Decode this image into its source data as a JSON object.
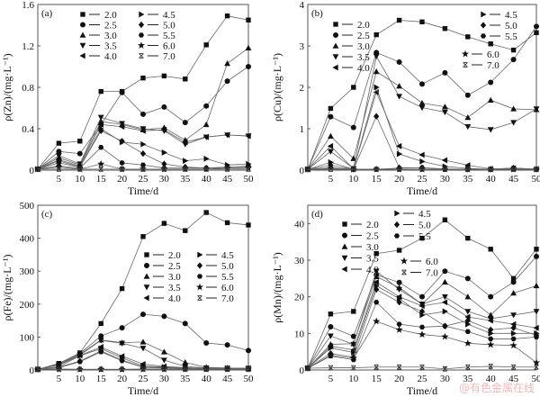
{
  "chart_data": [
    {
      "type": "line",
      "panel_label": "(a)",
      "xlabel": "Time/d",
      "ylabel": "ρ(Zn)/(mg·L⁻¹)",
      "xlim": [
        0,
        50
      ],
      "ylim": [
        0,
        1.6
      ],
      "xticks": [
        0,
        5,
        10,
        15,
        20,
        25,
        30,
        35,
        40,
        45,
        50
      ],
      "yticks": [
        0,
        0.4,
        0.8,
        1.2,
        1.6
      ],
      "ytick_labels": [
        "0",
        "0.4",
        "0.8",
        "1.2",
        "1.6"
      ],
      "legend_placement": "top",
      "x": [
        0,
        5,
        10,
        15,
        20,
        25,
        30,
        35,
        40,
        45,
        50
      ],
      "series": [
        {
          "name": "2.0",
          "marker": "square",
          "values": [
            0.01,
            0.26,
            0.28,
            0.76,
            0.76,
            0.89,
            0.91,
            0.88,
            1.21,
            1.49,
            1.45
          ]
        },
        {
          "name": "2.5",
          "marker": "circle",
          "values": [
            0.01,
            0.18,
            0.16,
            0.44,
            0.75,
            0.54,
            0.61,
            0.46,
            0.62,
            0.86,
            1.0
          ]
        },
        {
          "name": "3.0",
          "marker": "triangle-up",
          "values": [
            0.01,
            0.12,
            0.05,
            0.47,
            0.44,
            0.39,
            0.41,
            0.29,
            0.44,
            1.03,
            1.18
          ]
        },
        {
          "name": "3.5",
          "marker": "triangle-down",
          "values": [
            0.01,
            0.14,
            0.06,
            0.51,
            0.45,
            0.4,
            0.38,
            0.25,
            0.32,
            0.34,
            0.33
          ]
        },
        {
          "name": "4.0",
          "marker": "triangle-left",
          "values": [
            0.01,
            0.1,
            0.04,
            0.44,
            0.42,
            0.38,
            0.39,
            0.27,
            0.32,
            0.34,
            0.33
          ]
        },
        {
          "name": "4.5",
          "marker": "triangle-right",
          "values": [
            0.01,
            0.09,
            0.03,
            0.4,
            0.27,
            0.25,
            0.17,
            0.09,
            0.11,
            0.05,
            0.06
          ]
        },
        {
          "name": "5.0",
          "marker": "diamond",
          "values": [
            0.01,
            0.07,
            0.03,
            0.38,
            0.28,
            0.16,
            0.06,
            0.03,
            0.02,
            0.03,
            0.04
          ]
        },
        {
          "name": "5.5",
          "marker": "hexagon",
          "values": [
            0.01,
            0.04,
            0.02,
            0.22,
            0.07,
            0.05,
            0.02,
            0.02,
            0.02,
            0.02,
            0.03
          ]
        },
        {
          "name": "6.0",
          "marker": "star",
          "values": [
            0.01,
            0.03,
            0.01,
            0.06,
            0.01,
            0.01,
            0.01,
            0.01,
            0.01,
            0.02,
            0.02
          ]
        },
        {
          "name": "7.0",
          "marker": "x",
          "values": [
            0.01,
            0.01,
            0.01,
            0.01,
            0.01,
            0.01,
            0.01,
            0.01,
            0.01,
            0.01,
            0.01
          ]
        }
      ]
    },
    {
      "type": "line",
      "panel_label": "(b)",
      "xlabel": "Time/d",
      "ylabel": "ρ(Cu)/(mg·L⁻¹)",
      "xlim": [
        0,
        50
      ],
      "ylim": [
        0,
        4
      ],
      "xticks": [
        0,
        5,
        10,
        15,
        20,
        25,
        30,
        35,
        40,
        45,
        50
      ],
      "yticks": [
        0,
        1,
        2,
        3,
        4
      ],
      "ytick_labels": [
        "0",
        "1",
        "2",
        "3",
        "4"
      ],
      "legend_placement": "top-left and top-right",
      "x": [
        0,
        5,
        10,
        15,
        20,
        25,
        30,
        35,
        40,
        45,
        50
      ],
      "series": [
        {
          "name": "2.0",
          "marker": "square",
          "values": [
            0.02,
            1.49,
            2.0,
            3.27,
            3.62,
            3.58,
            3.42,
            3.22,
            3.05,
            2.9,
            3.32
          ]
        },
        {
          "name": "2.5",
          "marker": "circle",
          "values": [
            0.02,
            1.29,
            1.03,
            2.84,
            2.61,
            2.08,
            2.35,
            1.81,
            2.12,
            2.67,
            3.47
          ]
        },
        {
          "name": "3.0",
          "marker": "triangle-up",
          "values": [
            0.02,
            0.82,
            0.28,
            2.38,
            2.03,
            1.62,
            1.53,
            1.27,
            1.69,
            1.48,
            1.46
          ]
        },
        {
          "name": "3.5",
          "marker": "triangle-down",
          "values": [
            0.02,
            0.45,
            0.04,
            2.75,
            1.78,
            1.51,
            1.4,
            1.05,
            0.98,
            1.15,
            1.48
          ]
        },
        {
          "name": "4.0",
          "marker": "triangle-left",
          "values": [
            0.02,
            0.58,
            0.03,
            1.88,
            0.58,
            0.37,
            0.24,
            0.12,
            0.03,
            0.04,
            0.03
          ]
        },
        {
          "name": "4.5",
          "marker": "triangle-right",
          "values": [
            0.02,
            0.19,
            0.02,
            2.0,
            0.39,
            0.21,
            0.09,
            0.04,
            0.02,
            0.03,
            0.02
          ]
        },
        {
          "name": "5.0",
          "marker": "diamond",
          "values": [
            0.02,
            0.12,
            0.02,
            1.3,
            0.06,
            0.06,
            0.03,
            0.02,
            0.02,
            0.05,
            0.02
          ]
        },
        {
          "name": "5.5",
          "marker": "hexagon",
          "values": [
            0.02,
            0.06,
            0.02,
            0.02,
            0.05,
            0.06,
            0.02,
            0.02,
            0.02,
            0.05,
            0.02
          ]
        },
        {
          "name": "6.0",
          "marker": "star",
          "values": [
            0.02,
            0.04,
            0.02,
            0.02,
            0.02,
            0.02,
            0.02,
            0.02,
            0.02,
            0.02,
            0.02
          ]
        },
        {
          "name": "7.0",
          "marker": "x",
          "values": [
            0.02,
            0.02,
            0.02,
            0.02,
            0.02,
            0.02,
            0.02,
            0.02,
            0.02,
            0.02,
            0.02
          ]
        }
      ]
    },
    {
      "type": "line",
      "panel_label": "(c)",
      "xlabel": "Time/d",
      "ylabel": "ρ(Fe)/(mg·L⁻¹)",
      "xlim": [
        0,
        50
      ],
      "ylim": [
        0,
        500
      ],
      "xticks": [
        0,
        5,
        10,
        15,
        20,
        25,
        30,
        35,
        40,
        45,
        50
      ],
      "yticks": [
        0,
        100,
        200,
        300,
        400,
        500
      ],
      "ytick_labels": [
        "0",
        "100",
        "200",
        "300",
        "400",
        "500"
      ],
      "legend_placement": "center-right",
      "x": [
        0,
        5,
        10,
        15,
        20,
        25,
        30,
        35,
        40,
        45,
        50
      ],
      "series": [
        {
          "name": "2.0",
          "marker": "square",
          "values": [
            2,
            20,
            52,
            141,
            247,
            405,
            445,
            423,
            478,
            447,
            440
          ]
        },
        {
          "name": "2.5",
          "marker": "circle",
          "values": [
            2,
            18,
            50,
            103,
            128,
            169,
            163,
            141,
            82,
            76,
            59
          ]
        },
        {
          "name": "3.0",
          "marker": "triangle-up",
          "values": [
            2,
            17,
            48,
            91,
            83,
            85,
            55,
            23,
            8,
            6,
            5
          ]
        },
        {
          "name": "3.5",
          "marker": "triangle-down",
          "values": [
            2,
            16,
            45,
            90,
            81,
            66,
            30,
            11,
            6,
            5,
            5
          ]
        },
        {
          "name": "4.0",
          "marker": "triangle-left",
          "values": [
            2,
            15,
            44,
            70,
            42,
            18,
            11,
            7,
            5,
            5,
            5
          ]
        },
        {
          "name": "4.5",
          "marker": "triangle-right",
          "values": [
            2,
            10,
            43,
            65,
            37,
            12,
            9,
            6,
            5,
            5,
            5
          ]
        },
        {
          "name": "5.0",
          "marker": "diamond",
          "values": [
            2,
            9,
            27,
            58,
            30,
            9,
            7,
            6,
            5,
            5,
            5
          ]
        },
        {
          "name": "5.5",
          "marker": "hexagon",
          "values": [
            2,
            7,
            25,
            55,
            28,
            8,
            6,
            5,
            5,
            5,
            5
          ]
        },
        {
          "name": "6.0",
          "marker": "star",
          "values": [
            2,
            3,
            2,
            2,
            2,
            3,
            3,
            3,
            3,
            3,
            3
          ]
        },
        {
          "name": "7.0",
          "marker": "x",
          "values": [
            2,
            2,
            2,
            2,
            2,
            2,
            2,
            2,
            2,
            2,
            2
          ]
        }
      ]
    },
    {
      "type": "line",
      "panel_label": "(d)",
      "xlabel": "Time/d",
      "ylabel": "ρ(Mn)/(mg·L⁻¹)",
      "xlim": [
        0,
        50
      ],
      "ylim": [
        0,
        45
      ],
      "xticks": [
        0,
        5,
        10,
        15,
        20,
        25,
        30,
        35,
        40,
        45,
        50
      ],
      "yticks": [
        0,
        10,
        20,
        30,
        40
      ],
      "ytick_labels": [
        "0",
        "10",
        "20",
        "30",
        "40"
      ],
      "legend_placement": "top-left",
      "x": [
        0,
        5,
        10,
        15,
        20,
        25,
        30,
        35,
        40,
        45,
        50
      ],
      "series": [
        {
          "name": "2.0",
          "marker": "square",
          "values": [
            0.5,
            15.3,
            16.0,
            31.8,
            32.7,
            36.0,
            41.0,
            36.0,
            33.0,
            25.0,
            33.0
          ]
        },
        {
          "name": "2.5",
          "marker": "circle",
          "values": [
            0.5,
            11.8,
            9.2,
            26.0,
            23.9,
            20.0,
            27.0,
            25.0,
            20.0,
            24.0,
            31.0
          ]
        },
        {
          "name": "3.0",
          "marker": "triangle-up",
          "values": [
            0.5,
            7.0,
            7.2,
            25.5,
            22.5,
            18.0,
            24.0,
            20.0,
            15.0,
            21.0,
            23.0
          ]
        },
        {
          "name": "3.5",
          "marker": "triangle-down",
          "values": [
            0.5,
            9.3,
            7.0,
            27.0,
            22.0,
            18.0,
            20.0,
            16.0,
            14.0,
            15.0,
            16.0
          ]
        },
        {
          "name": "4.0",
          "marker": "triangle-left",
          "values": [
            0.5,
            6.5,
            5.5,
            24.0,
            20.0,
            17.5,
            18.5,
            14.5,
            13.5,
            12.5,
            11.5
          ]
        },
        {
          "name": "4.5",
          "marker": "triangle-right",
          "values": [
            0.5,
            6.0,
            4.8,
            23.0,
            19.5,
            15.0,
            16.0,
            12.5,
            10.0,
            10.0,
            10.0
          ]
        },
        {
          "name": "5.0",
          "marker": "diamond",
          "values": [
            0.5,
            4.5,
            3.5,
            22.0,
            18.5,
            16.0,
            12.0,
            13.5,
            11.0,
            11.5,
            9.5
          ]
        },
        {
          "name": "5.5",
          "marker": "hexagon",
          "values": [
            0.5,
            3.8,
            2.8,
            18.5,
            12.5,
            11.7,
            12.0,
            10.5,
            8.5,
            8.5,
            9.0
          ]
        },
        {
          "name": "6.0",
          "marker": "star",
          "values": [
            0.5,
            4.0,
            3.2,
            13.3,
            11.0,
            9.7,
            9.1,
            7.3,
            6.9,
            6.7,
            2.0
          ]
        },
        {
          "name": "7.0",
          "marker": "x",
          "values": [
            0.5,
            0.6,
            0.6,
            0.8,
            0.8,
            0.8,
            0.3,
            0.8,
            1.0,
            0.8,
            0.8
          ]
        }
      ]
    }
  ],
  "watermark": "@有色金属在线"
}
